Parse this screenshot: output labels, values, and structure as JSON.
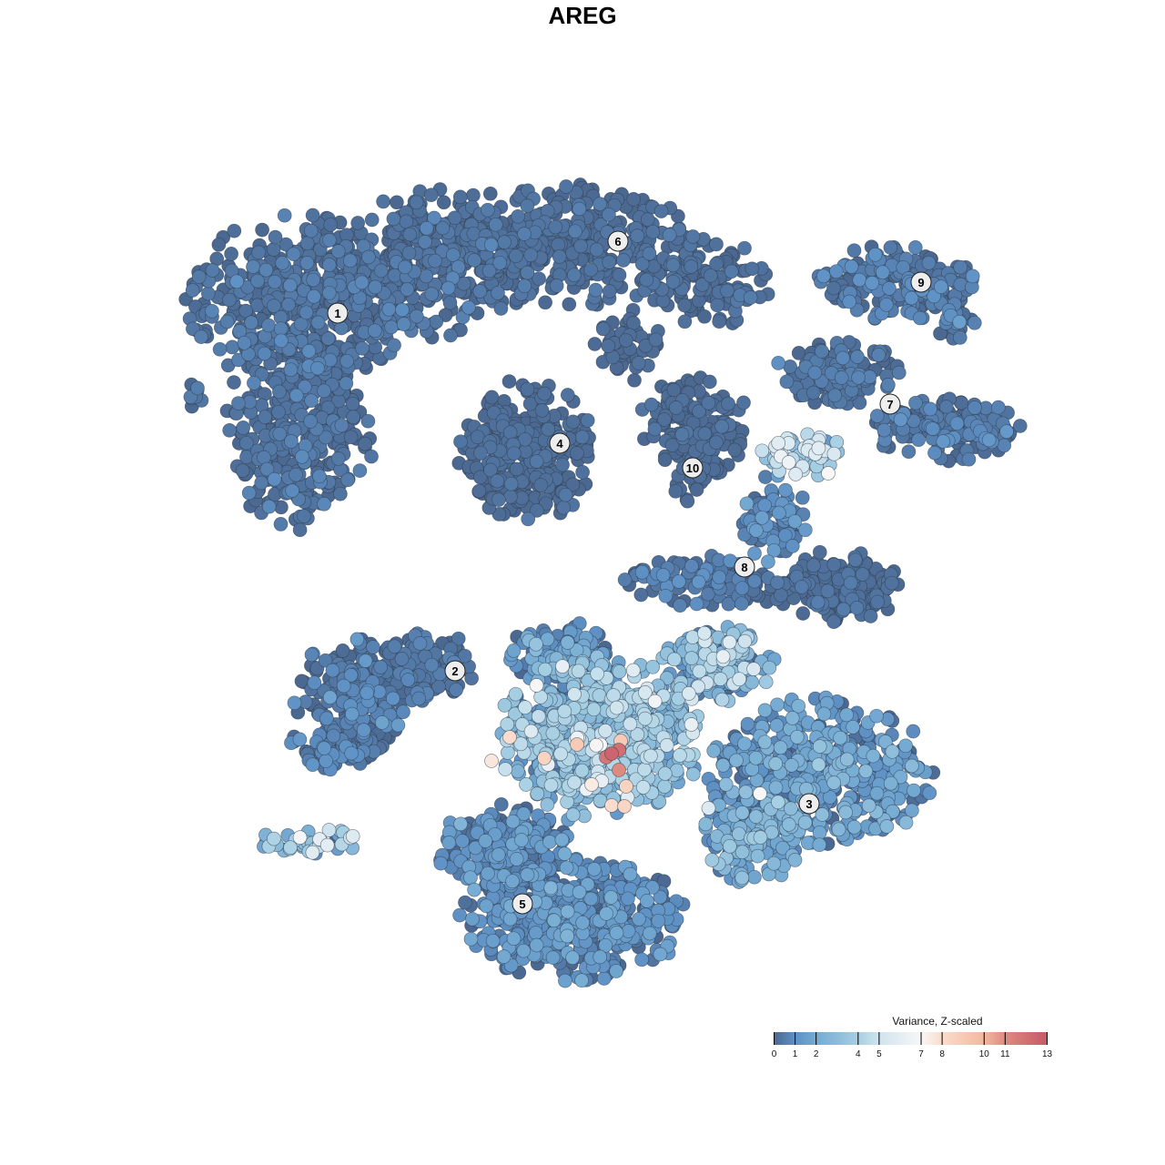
{
  "chart_data": {
    "type": "scatter",
    "title": "AREG",
    "xlabel": "",
    "ylabel": "",
    "grid": false,
    "axes_visible": false,
    "color_scale": {
      "title": "Variance, Z-scaled",
      "range": [
        0,
        13
      ],
      "ticks": [
        0,
        1,
        2,
        4,
        5,
        7,
        8,
        10,
        11,
        13
      ],
      "stops": [
        {
          "value": 0,
          "color": "#4b6891"
        },
        {
          "value": 1,
          "color": "#5e90c4"
        },
        {
          "value": 2,
          "color": "#74aad2"
        },
        {
          "value": 4,
          "color": "#a6cfe3"
        },
        {
          "value": 5,
          "color": "#d0e4ef"
        },
        {
          "value": 7,
          "color": "#f7f7f7"
        },
        {
          "value": 8,
          "color": "#fbdccc"
        },
        {
          "value": 10,
          "color": "#f3b79e"
        },
        {
          "value": 11,
          "color": "#dd8a80"
        },
        {
          "value": 13,
          "color": "#c65866"
        }
      ]
    },
    "legend_placement": "bottom-right",
    "cluster_labels": [
      "1",
      "2",
      "3",
      "4",
      "5",
      "6",
      "7",
      "8",
      "9",
      "10"
    ]
  }
}
